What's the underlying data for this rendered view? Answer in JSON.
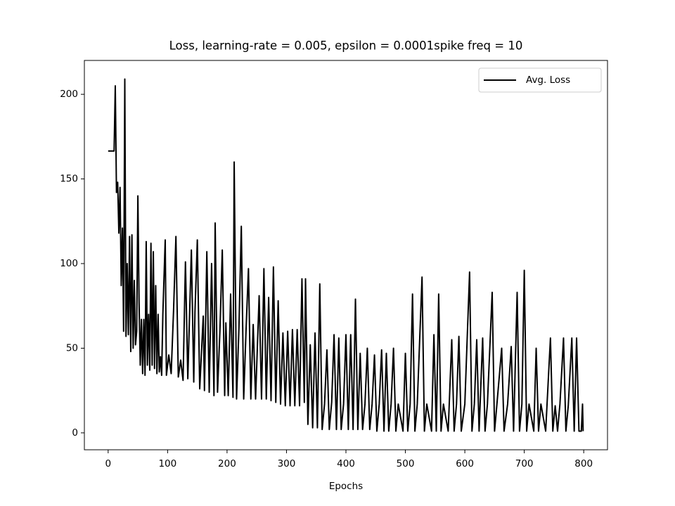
{
  "chart_data": {
    "type": "line",
    "title": "Loss, learning-rate = 0.005, epsilon = 0.0001spike freq = 10",
    "x_label": "Epochs",
    "x": [
      0,
      10,
      12,
      14,
      16,
      18,
      20,
      22,
      24,
      26,
      28,
      30,
      32,
      34,
      36,
      38,
      40,
      42,
      44,
      46,
      48,
      50,
      52,
      54,
      56,
      58,
      60,
      62,
      64,
      66,
      68,
      70,
      72,
      74,
      76,
      78,
      80,
      82,
      84,
      86,
      88,
      90,
      92,
      96,
      98,
      102,
      106,
      110,
      114,
      118,
      122,
      126,
      130,
      134,
      140,
      144,
      146,
      150,
      154,
      160,
      162,
      166,
      170,
      174,
      178,
      180,
      184,
      188,
      192,
      196,
      198,
      202,
      206,
      210,
      212,
      216,
      220,
      224,
      228,
      232,
      236,
      240,
      244,
      248,
      254,
      258,
      262,
      266,
      270,
      274,
      278,
      282,
      286,
      290,
      294,
      298,
      302,
      306,
      310,
      314,
      318,
      322,
      326,
      330,
      332,
      336,
      340,
      344,
      348,
      352,
      356,
      360,
      364,
      368,
      372,
      376,
      380,
      384,
      388,
      392,
      396,
      400,
      404,
      408,
      412,
      416,
      420,
      424,
      428,
      432,
      436,
      440,
      444,
      448,
      452,
      456,
      460,
      464,
      468,
      472,
      476,
      480,
      484,
      488,
      496,
      500,
      504,
      508,
      512,
      516,
      520,
      528,
      532,
      536,
      544,
      548,
      552,
      556,
      560,
      564,
      572,
      578,
      582,
      586,
      590,
      594,
      600,
      608,
      612,
      616,
      620,
      624,
      630,
      634,
      638,
      646,
      650,
      654,
      662,
      666,
      672,
      678,
      682,
      688,
      692,
      696,
      700,
      704,
      708,
      716,
      720,
      724,
      728,
      736,
      744,
      748,
      752,
      756,
      760,
      766,
      770,
      774,
      780,
      784,
      788,
      792,
      796,
      798,
      799
    ],
    "series": [
      {
        "name": "Avg. Loss",
        "color": "#000000",
        "values": [
          166.5,
          166.5,
          205,
          142,
          148,
          118,
          145,
          87,
          121,
          60,
          209,
          57,
          100,
          58,
          116,
          48,
          117,
          50,
          90,
          52,
          60,
          140,
          77,
          40,
          67,
          35,
          67,
          34,
          113,
          40,
          70,
          37,
          112,
          40,
          107,
          38,
          87,
          35,
          70,
          36,
          45,
          34,
          70,
          114,
          34,
          46,
          35,
          72,
          116,
          33,
          43,
          31,
          101,
          32,
          108,
          30,
          71,
          114,
          26,
          69,
          25,
          107,
          24,
          100,
          22,
          124,
          24,
          60,
          108,
          22,
          65,
          22,
          82,
          21,
          160,
          20,
          62,
          122,
          20,
          61,
          97,
          20,
          64,
          20,
          81,
          20,
          97,
          20,
          80,
          19,
          98,
          18,
          78,
          17,
          59,
          16,
          60,
          16,
          61,
          16,
          61,
          16,
          91,
          18,
          91,
          5,
          52,
          3,
          59,
          3,
          88,
          2,
          17,
          49,
          2,
          18,
          58,
          2,
          56,
          2,
          17,
          58,
          2,
          58,
          2,
          79,
          2,
          47,
          2,
          17,
          50,
          2,
          17,
          46,
          1,
          17,
          49,
          1,
          47,
          1,
          17,
          50,
          1,
          17,
          1,
          47,
          1,
          17,
          82,
          1,
          17,
          92,
          1,
          17,
          1,
          58,
          1,
          82,
          1,
          17,
          1,
          55,
          1,
          17,
          57,
          1,
          17,
          95,
          1,
          17,
          55,
          1,
          56,
          1,
          17,
          83,
          1,
          17,
          50,
          1,
          17,
          51,
          1,
          83,
          1,
          17,
          96,
          1,
          17,
          1,
          50,
          1,
          17,
          1,
          56,
          1,
          16,
          1,
          17,
          56,
          1,
          16,
          56,
          1,
          56,
          1,
          1,
          17,
          1
        ]
      }
    ],
    "xlim": [
      -40,
      840
    ],
    "ylim": [
      -10,
      220
    ],
    "xticks": [
      0,
      100,
      200,
      300,
      400,
      500,
      600,
      700,
      800
    ],
    "yticks": [
      0,
      50,
      100,
      150,
      200
    ],
    "legend": "upper right"
  }
}
